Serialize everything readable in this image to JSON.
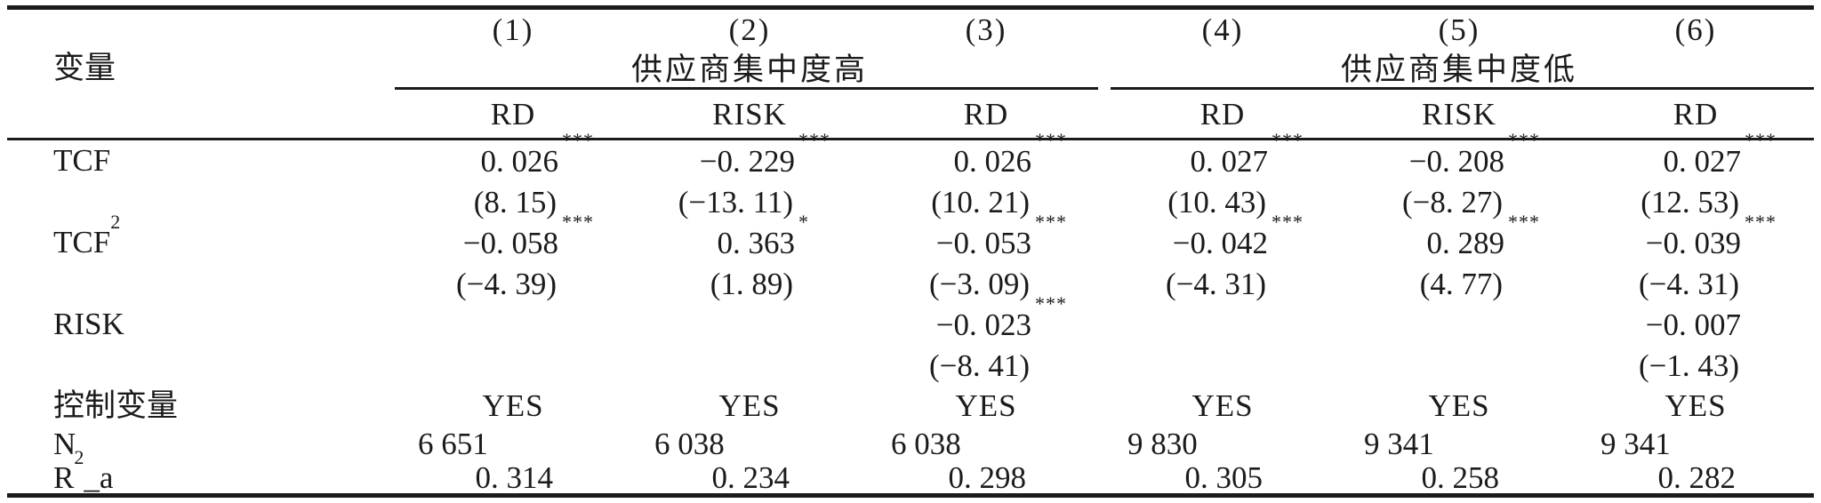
{
  "page": {
    "background": "#ffffff",
    "text_color": "#1b1b1b",
    "rule_color": "#1b1b1b"
  },
  "table": {
    "column_numbers": [
      "(1)",
      "(2)",
      "(3)",
      "(4)",
      "(5)",
      "(6)"
    ],
    "variable_header": "变量",
    "group_headers": {
      "left": "供应商集中度高",
      "right": "供应商集中度低"
    },
    "dep_var_row": [
      "RD",
      "RISK",
      "RD",
      "RD",
      "RISK",
      "RD"
    ],
    "rows": {
      "tcf": {
        "label": "TCF",
        "label_sup": "",
        "coef": [
          "0. 026",
          "−0. 229",
          "0. 026",
          "0. 027",
          "−0. 208",
          "0. 027"
        ],
        "stars": [
          "***",
          "***",
          "***",
          "***",
          "***",
          "***"
        ],
        "tstat": [
          "(8. 15)",
          "(−13. 11)",
          "(10. 21)",
          "(10. 43)",
          "(−8. 27)",
          "(12. 53)"
        ]
      },
      "tcf2": {
        "label": "TCF",
        "label_sup": "2",
        "coef": [
          "−0. 058",
          "0. 363",
          "−0. 053",
          "−0. 042",
          "0. 289",
          "−0. 039"
        ],
        "stars": [
          "***",
          "*",
          "***",
          "***",
          "***",
          "***"
        ],
        "tstat": [
          "(−4. 39)",
          "(1. 89)",
          "(−3. 09)",
          "(−4. 31)",
          "(4. 77)",
          "(−4. 31)"
        ]
      },
      "risk": {
        "label": "RISK",
        "label_sup": "",
        "coef": [
          "",
          "",
          "−0. 023",
          "",
          "",
          "−0. 007"
        ],
        "stars": [
          "",
          "",
          "***",
          "",
          "",
          ""
        ],
        "tstat": [
          "",
          "",
          "(−8. 41)",
          "",
          "",
          "(−1. 43)"
        ]
      },
      "controls": {
        "label": "控制变量",
        "values": [
          "YES",
          "YES",
          "YES",
          "YES",
          "YES",
          "YES"
        ]
      },
      "n": {
        "label": "N",
        "values": [
          "6 651",
          "6 038",
          "6 038",
          "9 830",
          "9 341",
          "9 341"
        ]
      },
      "r2a": {
        "label_base": "R",
        "label_sup": "2",
        "label_suffix": "_a",
        "values": [
          "0. 314",
          "0. 234",
          "0. 298",
          "0. 305",
          "0. 258",
          "0. 282"
        ]
      }
    }
  }
}
